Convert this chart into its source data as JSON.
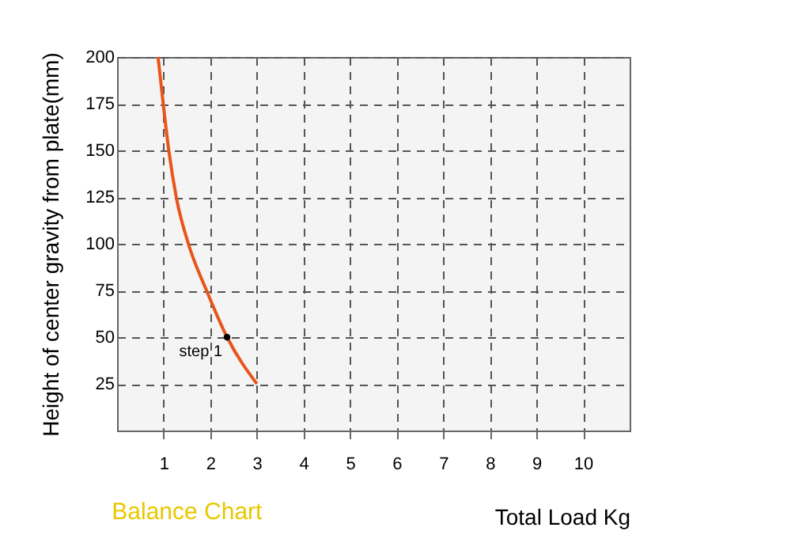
{
  "chart_data": {
    "type": "line",
    "title": "Balance Chart",
    "xlabel": "Total Load Kg",
    "ylabel": "Height of center gravity from plate(mm)",
    "series": [
      {
        "color": "#e8541a",
        "x": [
          0.88,
          0.99,
          1.11,
          1.27,
          1.53,
          1.92,
          2.36,
          3.0
        ],
        "values": [
          200,
          175,
          150,
          125,
          100,
          75,
          50,
          25
        ]
      },
      {
        "type": "scatter",
        "color": "#000000",
        "x": [
          2.36
        ],
        "values": [
          50
        ]
      }
    ],
    "annotations": [
      {
        "text": "step 1",
        "x": 2.36,
        "y": 50
      }
    ],
    "xlim": [
      0,
      11
    ],
    "ylim": [
      0,
      200
    ],
    "xticks": [
      1,
      2,
      3,
      4,
      5,
      6,
      7,
      8,
      9,
      10
    ],
    "yticks": [
      25,
      50,
      75,
      100,
      125,
      150,
      175,
      200
    ],
    "grid": true,
    "line_style": "solid"
  }
}
